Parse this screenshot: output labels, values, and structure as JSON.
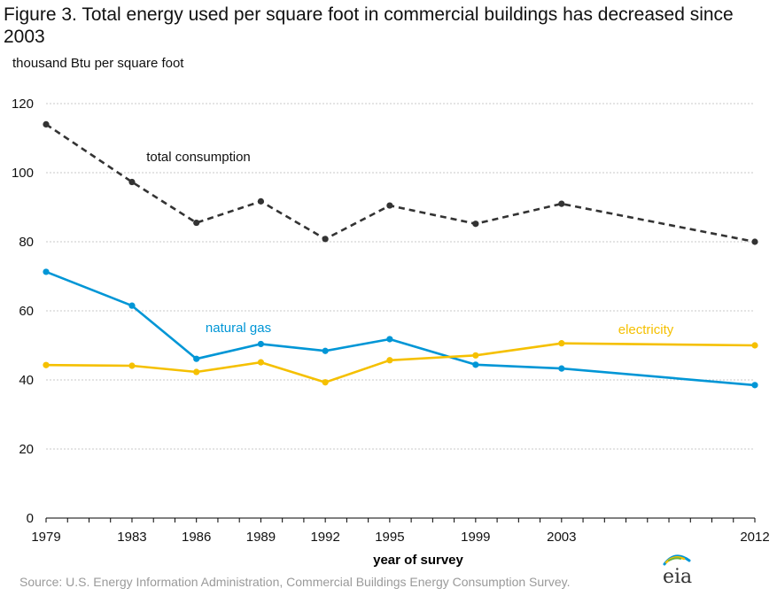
{
  "title": "Figure 3. Total energy used per square foot in commercial buildings has decreased since 2003",
  "source": "Source: U.S. Energy Information Administration, Commercial Buildings Energy Consumption Survey.",
  "logo_text": "eia",
  "chart_data": {
    "type": "line",
    "ylabel": "thousand  Btu per square foot",
    "xlabel": "year of survey",
    "ylim": [
      0,
      120
    ],
    "yticks": [
      0,
      20,
      40,
      60,
      80,
      100,
      120
    ],
    "xlim": [
      1979,
      2012
    ],
    "x": [
      1979,
      1983,
      1986,
      1989,
      1992,
      1995,
      1999,
      2003,
      2012
    ],
    "grid": true,
    "legend": "inline labels",
    "series": [
      {
        "name": "total consumption",
        "color": "#333333",
        "dash": true,
        "values": [
          114.0,
          97.3,
          85.5,
          91.7,
          80.8,
          90.5,
          85.2,
          91.0,
          80.0
        ]
      },
      {
        "name": "natural gas",
        "color": "#0096d6",
        "dash": false,
        "values": [
          71.3,
          61.5,
          46.1,
          50.4,
          48.4,
          51.8,
          44.4,
          43.3,
          38.5
        ]
      },
      {
        "name": "electricity",
        "color": "#f5c000",
        "dash": false,
        "values": [
          44.3,
          44.1,
          42.3,
          45.1,
          39.3,
          45.7,
          47.1,
          50.6,
          50.0
        ]
      }
    ]
  }
}
